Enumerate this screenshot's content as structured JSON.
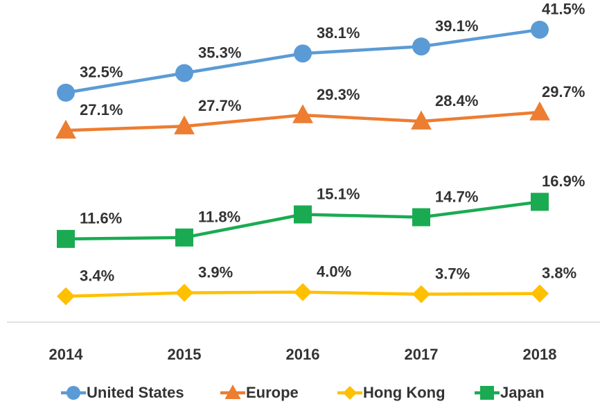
{
  "chart_data": {
    "type": "line",
    "categories": [
      "2014",
      "2015",
      "2016",
      "2017",
      "2018"
    ],
    "series": [
      {
        "name": "United States",
        "color": "#5b9bd5",
        "marker": "circle",
        "values": [
          32.5,
          35.3,
          38.1,
          39.1,
          41.5
        ],
        "value_labels": [
          "32.5%",
          "35.3%",
          "38.1%",
          "39.1%",
          "41.5%"
        ]
      },
      {
        "name": "Europe",
        "color": "#ed7d31",
        "marker": "triangle",
        "values": [
          27.1,
          27.7,
          29.3,
          28.4,
          29.7
        ],
        "value_labels": [
          "27.1%",
          "27.7%",
          "29.3%",
          "28.4%",
          "29.7%"
        ]
      },
      {
        "name": "Hong Kong",
        "color": "#ffc000",
        "marker": "diamond",
        "values": [
          3.4,
          3.9,
          4.0,
          3.7,
          3.8
        ],
        "value_labels": [
          "3.4%",
          "3.9%",
          "4.0%",
          "3.7%",
          "3.8%"
        ]
      },
      {
        "name": "Japan",
        "color": "#1aab52",
        "marker": "square",
        "values": [
          11.6,
          11.8,
          15.1,
          14.7,
          16.9
        ],
        "value_labels": [
          "11.6%",
          "11.8%",
          "15.1%",
          "14.7%",
          "16.9%"
        ]
      }
    ],
    "ylim": [
      0,
      45
    ],
    "legend": "bottom"
  }
}
